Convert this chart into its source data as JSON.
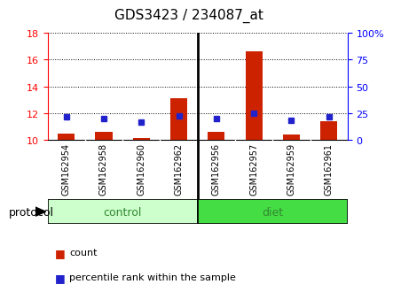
{
  "title": "GDS3423 / 234087_at",
  "samples": [
    "GSM162954",
    "GSM162958",
    "GSM162960",
    "GSM162962",
    "GSM162956",
    "GSM162957",
    "GSM162959",
    "GSM162961"
  ],
  "red_values": [
    10.45,
    10.55,
    10.1,
    13.1,
    10.55,
    16.6,
    10.35,
    11.35
  ],
  "blue_values_pct": [
    21,
    20,
    16,
    22,
    20,
    25,
    18,
    21
  ],
  "ylim_left": [
    10,
    18
  ],
  "ylim_right": [
    0,
    100
  ],
  "yticks_left": [
    10,
    12,
    14,
    16,
    18
  ],
  "yticks_right": [
    0,
    25,
    50,
    75,
    100
  ],
  "ytick_labels_right": [
    "0",
    "25",
    "50",
    "75",
    "100%"
  ],
  "red_color": "#cc2200",
  "blue_color": "#2222cc",
  "control_color_light": "#ccffcc",
  "diet_color": "#44dd44",
  "group_text_color": "#338833",
  "protocol_label": "protocol",
  "legend_red": "count",
  "legend_blue": "percentile rank within the sample",
  "title_fontsize": 11,
  "control_samples": 4,
  "diet_samples": 4
}
